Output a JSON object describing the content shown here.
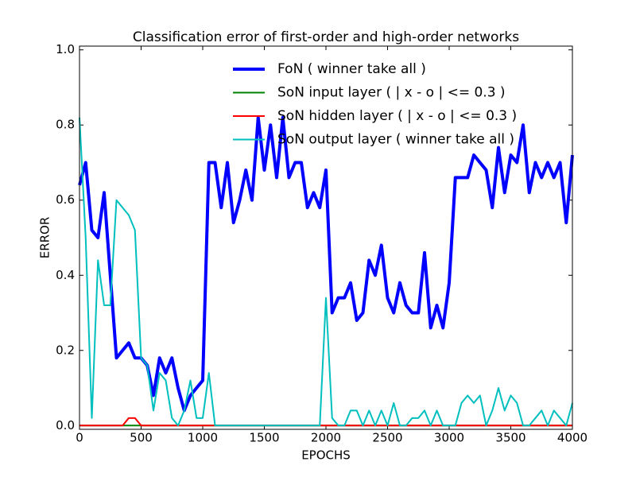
{
  "chart_data": {
    "type": "line",
    "title": "Classification error of first-order and high-order networks",
    "x_label": "EPOCHS",
    "y_label": "ERROR",
    "x": [
      0,
      50,
      100,
      150,
      200,
      250,
      300,
      350,
      400,
      450,
      500,
      550,
      600,
      650,
      700,
      750,
      800,
      850,
      900,
      950,
      1000,
      1050,
      1100,
      1150,
      1200,
      1250,
      1300,
      1350,
      1400,
      1450,
      1500,
      1550,
      1600,
      1650,
      1700,
      1750,
      1800,
      1850,
      1900,
      1950,
      2000,
      2050,
      2100,
      2150,
      2200,
      2250,
      2300,
      2350,
      2400,
      2450,
      2500,
      2550,
      2600,
      2650,
      2700,
      2750,
      2800,
      2850,
      2900,
      2950,
      3000,
      3050,
      3100,
      3150,
      3200,
      3250,
      3300,
      3350,
      3400,
      3450,
      3500,
      3550,
      3600,
      3650,
      3700,
      3750,
      3800,
      3850,
      3900,
      3950,
      4000
    ],
    "series": [
      {
        "name": "FoN ( winner take all )",
        "color": "#0000ff",
        "values": [
          0.64,
          0.7,
          0.52,
          0.5,
          0.62,
          0.4,
          0.18,
          0.2,
          0.22,
          0.18,
          0.18,
          0.16,
          0.08,
          0.18,
          0.14,
          0.18,
          0.1,
          0.04,
          0.08,
          0.1,
          0.12,
          0.7,
          0.7,
          0.58,
          0.7,
          0.54,
          0.6,
          0.68,
          0.6,
          0.82,
          0.68,
          0.8,
          0.66,
          0.82,
          0.66,
          0.7,
          0.7,
          0.58,
          0.62,
          0.58,
          0.68,
          0.3,
          0.34,
          0.34,
          0.38,
          0.28,
          0.3,
          0.44,
          0.4,
          0.48,
          0.34,
          0.3,
          0.38,
          0.32,
          0.3,
          0.3,
          0.46,
          0.26,
          0.32,
          0.26,
          0.38,
          0.66,
          0.66,
          0.66,
          0.72,
          0.7,
          0.68,
          0.58,
          0.74,
          0.62,
          0.72,
          0.7,
          0.8,
          0.62,
          0.7,
          0.66,
          0.7,
          0.66,
          0.7,
          0.54,
          0.72
        ]
      },
      {
        "name": "SoN input layer ( | x - o | <= 0.3 )",
        "color": "#008000",
        "values": [
          0,
          0,
          0,
          0,
          0,
          0,
          0,
          0,
          0,
          0,
          0,
          0,
          0,
          0,
          0,
          0,
          0,
          0,
          0,
          0,
          0,
          0,
          0,
          0,
          0,
          0,
          0,
          0,
          0,
          0,
          0,
          0,
          0,
          0,
          0,
          0,
          0,
          0,
          0,
          0,
          0,
          0,
          0,
          0,
          0,
          0,
          0,
          0,
          0,
          0,
          0,
          0,
          0,
          0,
          0,
          0,
          0,
          0,
          0,
          0,
          0,
          0,
          0,
          0,
          0,
          0,
          0,
          0,
          0,
          0,
          0,
          0,
          0,
          0,
          0,
          0,
          0,
          0,
          0,
          0,
          0
        ]
      },
      {
        "name": "SoN hidden layer ( | x - o | <= 0.3 )",
        "color": "#ff0000",
        "values": [
          0,
          0,
          0,
          0,
          0,
          0,
          0,
          0,
          0.02,
          0.02,
          0,
          0,
          0,
          0,
          0,
          0,
          0,
          0,
          0,
          0,
          0,
          0,
          0,
          0,
          0,
          0,
          0,
          0,
          0,
          0,
          0,
          0,
          0,
          0,
          0,
          0,
          0,
          0,
          0,
          0,
          0,
          0,
          0,
          0,
          0,
          0,
          0,
          0,
          0,
          0,
          0,
          0,
          0,
          0,
          0,
          0,
          0,
          0,
          0,
          0,
          0,
          0,
          0,
          0,
          0,
          0,
          0,
          0,
          0,
          0,
          0,
          0,
          0,
          0,
          0,
          0,
          0,
          0,
          0,
          0,
          0
        ]
      },
      {
        "name": "SoN output layer ( winner take all )",
        "color": "#00bfbf",
        "values": [
          0.82,
          0.5,
          0.02,
          0.44,
          0.32,
          0.32,
          0.6,
          0.58,
          0.56,
          0.52,
          0.18,
          0.16,
          0.04,
          0.14,
          0.12,
          0.02,
          0,
          0.04,
          0.12,
          0.02,
          0.02,
          0.14,
          0,
          0,
          0,
          0,
          0,
          0,
          0,
          0,
          0,
          0,
          0,
          0,
          0,
          0,
          0,
          0,
          0,
          0,
          0.34,
          0.02,
          0,
          0,
          0.04,
          0.04,
          0,
          0.04,
          0,
          0.04,
          0,
          0.06,
          0,
          0,
          0.02,
          0.02,
          0.04,
          0,
          0.04,
          0,
          0,
          0,
          0.06,
          0.08,
          0.06,
          0.08,
          0,
          0.04,
          0.1,
          0.04,
          0.08,
          0.06,
          0,
          0,
          0.02,
          0.04,
          0,
          0.04,
          0.02,
          0,
          0.06
        ]
      }
    ],
    "xlim": [
      0,
      4000
    ],
    "ylim": [
      -0.01,
      1.01
    ],
    "xticks": [
      0,
      500,
      1000,
      1500,
      2000,
      2500,
      3000,
      3500,
      4000
    ],
    "yticks": [
      {
        "value": 0,
        "label": "0.0"
      },
      0.2,
      0.4,
      0.6,
      0.8,
      {
        "value": 1,
        "label": "1.0"
      }
    ],
    "legend": "upper right"
  }
}
